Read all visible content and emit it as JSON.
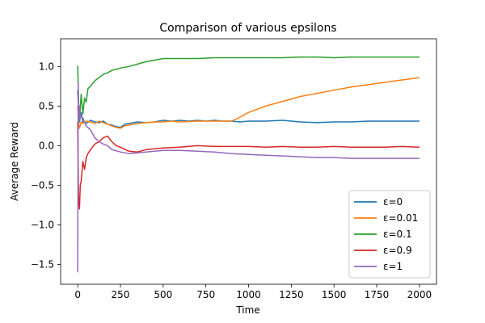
{
  "chart_data": {
    "type": "line",
    "title": "Comparison of various epsilons",
    "xlabel": "Time",
    "ylabel": "Average Reward",
    "xlim": [
      -100,
      2100
    ],
    "ylim": [
      -1.75,
      1.35
    ],
    "xticks": [
      0,
      250,
      500,
      750,
      1000,
      1250,
      1500,
      1750,
      2000
    ],
    "xtick_labels": [
      "0",
      "250",
      "500",
      "750",
      "1000",
      "1250",
      "1500",
      "1750",
      "2000"
    ],
    "yticks": [
      -1.5,
      -1.0,
      -0.5,
      0.0,
      0.5,
      1.0
    ],
    "ytick_labels": [
      "−1.5",
      "−1.0",
      "−0.5",
      "0.0",
      "0.5",
      "1.0"
    ],
    "grid": false,
    "legend_position": "lower-right",
    "series": [
      {
        "name": "ε=0",
        "color": "#1f77b4",
        "x": [
          0,
          5,
          10,
          20,
          30,
          50,
          75,
          100,
          125,
          150,
          175,
          200,
          225,
          250,
          275,
          300,
          350,
          400,
          450,
          500,
          550,
          600,
          650,
          700,
          750,
          800,
          850,
          900,
          950,
          1000,
          1100,
          1200,
          1300,
          1400,
          1500,
          1600,
          1700,
          1800,
          1900,
          2000
        ],
        "y": [
          0.7,
          0.45,
          0.3,
          0.42,
          0.3,
          0.28,
          0.32,
          0.3,
          0.29,
          0.31,
          0.27,
          0.26,
          0.24,
          0.23,
          0.27,
          0.28,
          0.3,
          0.29,
          0.3,
          0.32,
          0.31,
          0.32,
          0.31,
          0.32,
          0.31,
          0.32,
          0.31,
          0.31,
          0.3,
          0.31,
          0.31,
          0.32,
          0.3,
          0.29,
          0.3,
          0.3,
          0.31,
          0.31,
          0.31,
          0.31
        ]
      },
      {
        "name": "ε=0.01",
        "color": "#ff7f0e",
        "x": [
          0,
          5,
          10,
          20,
          30,
          50,
          75,
          100,
          125,
          150,
          175,
          200,
          225,
          250,
          275,
          300,
          350,
          400,
          450,
          500,
          550,
          600,
          700,
          800,
          900,
          950,
          1000,
          1100,
          1200,
          1300,
          1400,
          1500,
          1600,
          1700,
          1800,
          1900,
          2000
        ],
        "y": [
          0.5,
          0.3,
          0.22,
          0.3,
          0.28,
          0.31,
          0.3,
          0.28,
          0.31,
          0.29,
          0.27,
          0.25,
          0.23,
          0.22,
          0.25,
          0.26,
          0.28,
          0.29,
          0.3,
          0.3,
          0.31,
          0.3,
          0.31,
          0.31,
          0.31,
          0.36,
          0.42,
          0.5,
          0.56,
          0.62,
          0.66,
          0.7,
          0.74,
          0.77,
          0.8,
          0.83,
          0.86
        ]
      },
      {
        "name": "ε=0.1",
        "color": "#2ca02c",
        "x": [
          0,
          5,
          10,
          20,
          30,
          40,
          50,
          60,
          75,
          100,
          125,
          150,
          175,
          200,
          250,
          300,
          350,
          400,
          450,
          500,
          600,
          700,
          800,
          900,
          1000,
          1100,
          1200,
          1300,
          1400,
          1500,
          1600,
          1700,
          1800,
          1900,
          2000
        ],
        "y": [
          1.01,
          0.55,
          0.3,
          0.65,
          0.4,
          0.6,
          0.55,
          0.72,
          0.75,
          0.82,
          0.86,
          0.9,
          0.92,
          0.95,
          0.98,
          1.0,
          1.03,
          1.06,
          1.08,
          1.1,
          1.1,
          1.1,
          1.11,
          1.11,
          1.11,
          1.11,
          1.11,
          1.12,
          1.12,
          1.11,
          1.12,
          1.12,
          1.12,
          1.12,
          1.12
        ]
      },
      {
        "name": "ε=0.9",
        "color": "#d62728",
        "x": [
          0,
          5,
          10,
          15,
          20,
          30,
          40,
          50,
          60,
          75,
          100,
          125,
          150,
          175,
          200,
          225,
          250,
          300,
          350,
          400,
          450,
          500,
          600,
          700,
          800,
          900,
          1000,
          1100,
          1200,
          1300,
          1400,
          1500,
          1600,
          1700,
          1800,
          1900,
          2000
        ],
        "y": [
          0.3,
          -0.7,
          -0.8,
          -0.5,
          -0.45,
          -0.2,
          -0.3,
          -0.15,
          -0.1,
          -0.05,
          0.02,
          0.05,
          0.1,
          0.12,
          0.05,
          0.0,
          -0.02,
          -0.07,
          -0.08,
          -0.05,
          -0.04,
          -0.03,
          -0.02,
          0.0,
          -0.01,
          -0.01,
          -0.01,
          -0.02,
          -0.01,
          -0.02,
          -0.02,
          -0.01,
          -0.02,
          -0.02,
          -0.02,
          -0.01,
          -0.02
        ]
      },
      {
        "name": "ε=1",
        "color": "#9467bd",
        "x": [
          0,
          3,
          6,
          10,
          15,
          20,
          30,
          40,
          50,
          75,
          100,
          125,
          150,
          175,
          200,
          250,
          300,
          350,
          400,
          450,
          500,
          600,
          700,
          800,
          900,
          1000,
          1100,
          1200,
          1300,
          1400,
          1500,
          1600,
          1700,
          1800,
          1900,
          2000
        ],
        "y": [
          -1.6,
          0.8,
          0.3,
          0.5,
          0.35,
          0.38,
          0.35,
          0.3,
          0.25,
          0.2,
          0.1,
          0.05,
          0.02,
          0.0,
          -0.05,
          -0.08,
          -0.1,
          -0.09,
          -0.08,
          -0.07,
          -0.06,
          -0.06,
          -0.07,
          -0.08,
          -0.1,
          -0.11,
          -0.12,
          -0.13,
          -0.14,
          -0.15,
          -0.15,
          -0.16,
          -0.16,
          -0.16,
          -0.16,
          -0.16
        ]
      }
    ]
  }
}
